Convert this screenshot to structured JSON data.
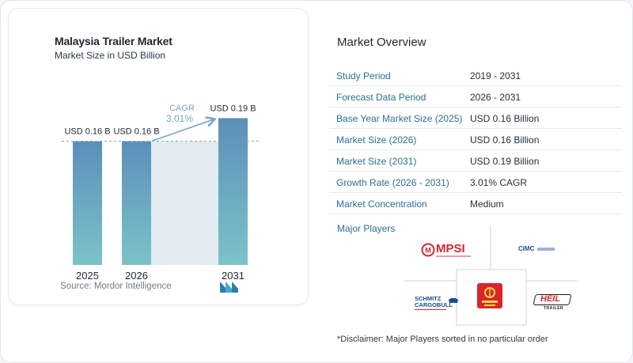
{
  "chart_card": {
    "title": "Malaysia Trailer Market",
    "subtitle": "Market Size in USD Billion",
    "source": "Source: Mordor Intelligence"
  },
  "chart_data": {
    "type": "bar",
    "title": "Malaysia Trailer Market",
    "subtitle": "Market Size in USD Billion",
    "categories": [
      "2025",
      "2026",
      "2031"
    ],
    "values": [
      0.16,
      0.16,
      0.19
    ],
    "data_labels": [
      "USD 0.16 B",
      "USD 0.16 B",
      "USD 0.19 B"
    ],
    "cagr_label": "CAGR",
    "cagr_value": "3.01%",
    "colors": {
      "bar_top": "#5b8fb9",
      "bar_bottom": "#7cc3c8",
      "shade": "#dde8f0",
      "cagr": "#7aa6c2"
    }
  },
  "overview": {
    "title": "Market Overview",
    "rows": [
      {
        "label": "Study Period",
        "value": "2019 - 2031"
      },
      {
        "label": "Forecast Data Period",
        "value": "2026 - 2031"
      },
      {
        "label": "Base Year Market Size (2025)",
        "value": "USD 0.16 Billion"
      },
      {
        "label": "Market Size (2026)",
        "value": "USD 0.16 Billion"
      },
      {
        "label": "Market Size (2031)",
        "value": "USD 0.19 Billion"
      },
      {
        "label": "Growth Rate (2026 - 2031)",
        "value": "3.01% CAGR"
      },
      {
        "label": "Market Concentration",
        "value": "Medium"
      }
    ]
  },
  "players": {
    "title": "Major Players",
    "logos": {
      "mpsi": "MPSI",
      "cimc": "CIMC",
      "schmitz": "SCHMITZ",
      "schmitz_sub": "CARGOBULL",
      "heil": "HEIL",
      "heil_sub": "TRAILER"
    }
  },
  "disclaimer": "*Disclaimer: Major Players sorted in no particular order"
}
